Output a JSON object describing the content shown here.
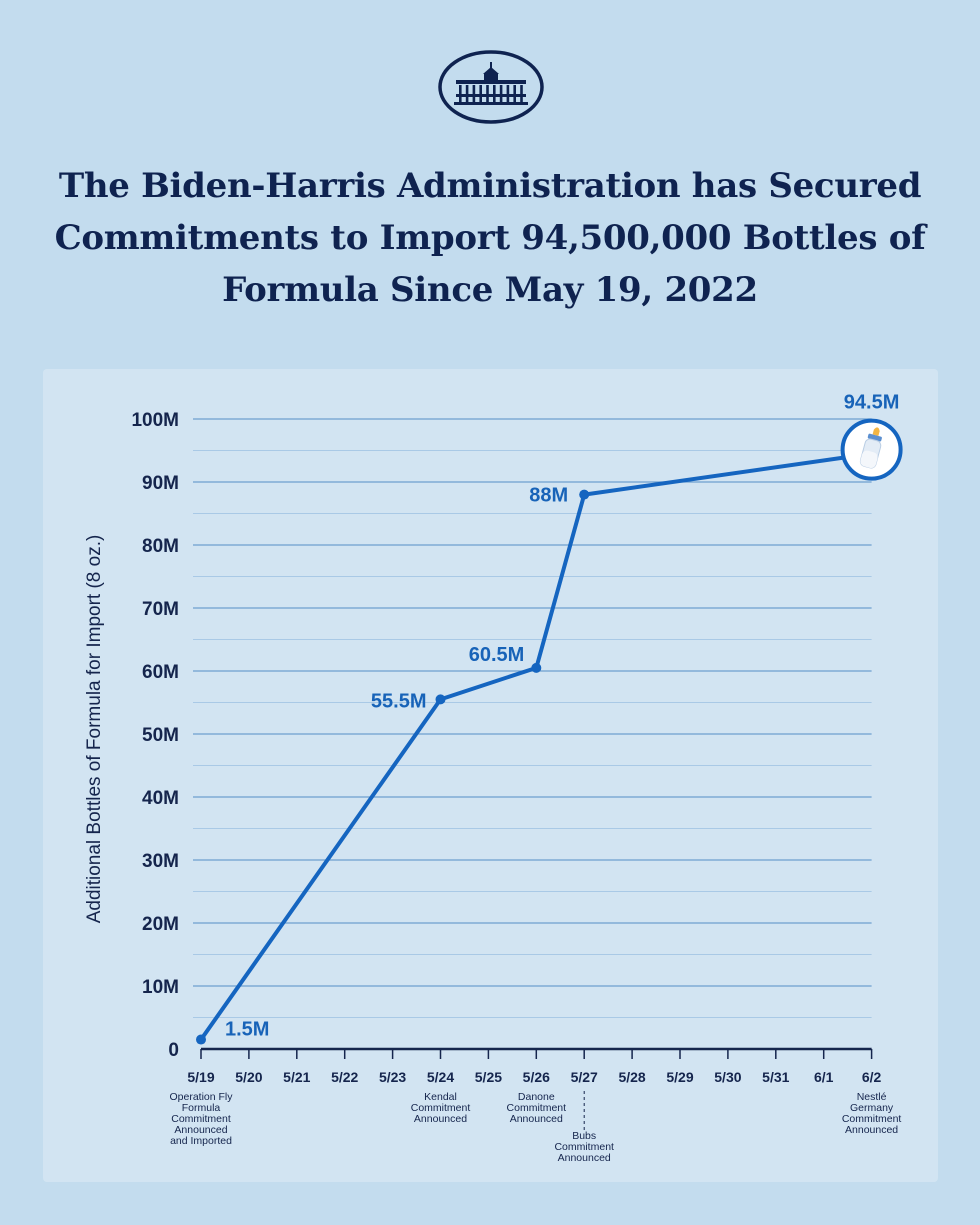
{
  "page": {
    "title_lines": [
      "The Biden-Harris Administration has Secured",
      "Commitments to Import 94,500,000 Bottles of",
      "Formula Since May 19, 2022"
    ]
  },
  "colors": {
    "background": "#c3dcee",
    "panel": "#d2e4f2",
    "line": "#1565c0",
    "navy": "#15254d",
    "grid_major": "#6e9fd0",
    "grid_minor": "#a9c9e6"
  },
  "icons": {
    "logo": "white-house-logo",
    "end_marker": "baby-bottle-icon"
  },
  "chart_data": {
    "type": "line",
    "title": "The Biden-Harris Administration has Secured Commitments to Import 94,500,000 Bottles of Formula Since May 19, 2022",
    "ylabel": "Additional Bottles of Formula for Import (8 oz.)",
    "xlabel": "",
    "categories": [
      "5/19",
      "5/20",
      "5/21",
      "5/22",
      "5/23",
      "5/24",
      "5/25",
      "5/26",
      "5/27",
      "5/28",
      "5/29",
      "5/30",
      "5/31",
      "6/1",
      "6/2"
    ],
    "ylim": [
      0,
      100
    ],
    "yunit": "M",
    "yticks": [
      0,
      10,
      20,
      30,
      40,
      50,
      60,
      70,
      80,
      90,
      100
    ],
    "ytick_labels": [
      "0",
      "10M",
      "20M",
      "30M",
      "40M",
      "50M",
      "60M",
      "70M",
      "80M",
      "90M",
      "100M"
    ],
    "grid": "horizontal",
    "series": [
      {
        "points": [
          {
            "x": "5/19",
            "y": 1.5,
            "label": "1.5M"
          },
          {
            "x": "5/24",
            "y": 55.5,
            "label": "55.5M"
          },
          {
            "x": "5/26",
            "y": 60.5,
            "label": "60.5M"
          },
          {
            "x": "5/27",
            "y": 88,
            "label": "88M"
          },
          {
            "x": "6/2",
            "y": 94.5,
            "label": "94.5M"
          }
        ]
      }
    ],
    "annotations": [
      {
        "x": "5/19",
        "lines": [
          "Operation Fly",
          "Formula",
          "Commitment",
          "Announced",
          "and Imported"
        ]
      },
      {
        "x": "5/24",
        "lines": [
          "Kendal",
          "Commitment",
          "Announced"
        ]
      },
      {
        "x": "5/26",
        "lines": [
          "Danone",
          "Commitment",
          "Announced"
        ]
      },
      {
        "x": "5/27",
        "lines": [
          "Bubs",
          "Commitment",
          "Announced"
        ],
        "dashed": true
      },
      {
        "x": "6/2",
        "lines": [
          "Nestlé",
          "Germany",
          "Commitment",
          "Announced"
        ]
      }
    ]
  }
}
